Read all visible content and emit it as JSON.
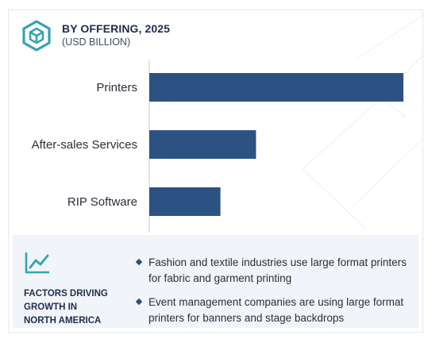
{
  "header": {
    "title": "BY OFFERING, 2025",
    "subtitle": "(USD BILLION)",
    "icon": "hexagon-cube-icon"
  },
  "colors": {
    "bar": "#2c5283",
    "accent": "#36a3b0",
    "title": "#1f2d4e",
    "panel": "#f1f4f8"
  },
  "chart_data": {
    "type": "bar",
    "orientation": "horizontal",
    "categories": [
      "Printers",
      "After-sales Services",
      "RIP Software"
    ],
    "values": [
      10.0,
      4.2,
      2.8
    ],
    "xlim": [
      0,
      10.0
    ],
    "title": "BY OFFERING, 2025",
    "subtitle": "(USD BILLION)",
    "xlabel": "",
    "ylabel": "",
    "grid": false,
    "legend": "none"
  },
  "factors": {
    "icon": "trend-line-icon",
    "heading_lines": [
      "FACTORS DRIVING",
      "GROWTH IN",
      "NORTH AMERICA"
    ],
    "bullets": [
      "Fashion and textile industries use large format printers for fabric and garment printing",
      "Event management companies are using large format printers for banners and stage backdrops"
    ]
  }
}
